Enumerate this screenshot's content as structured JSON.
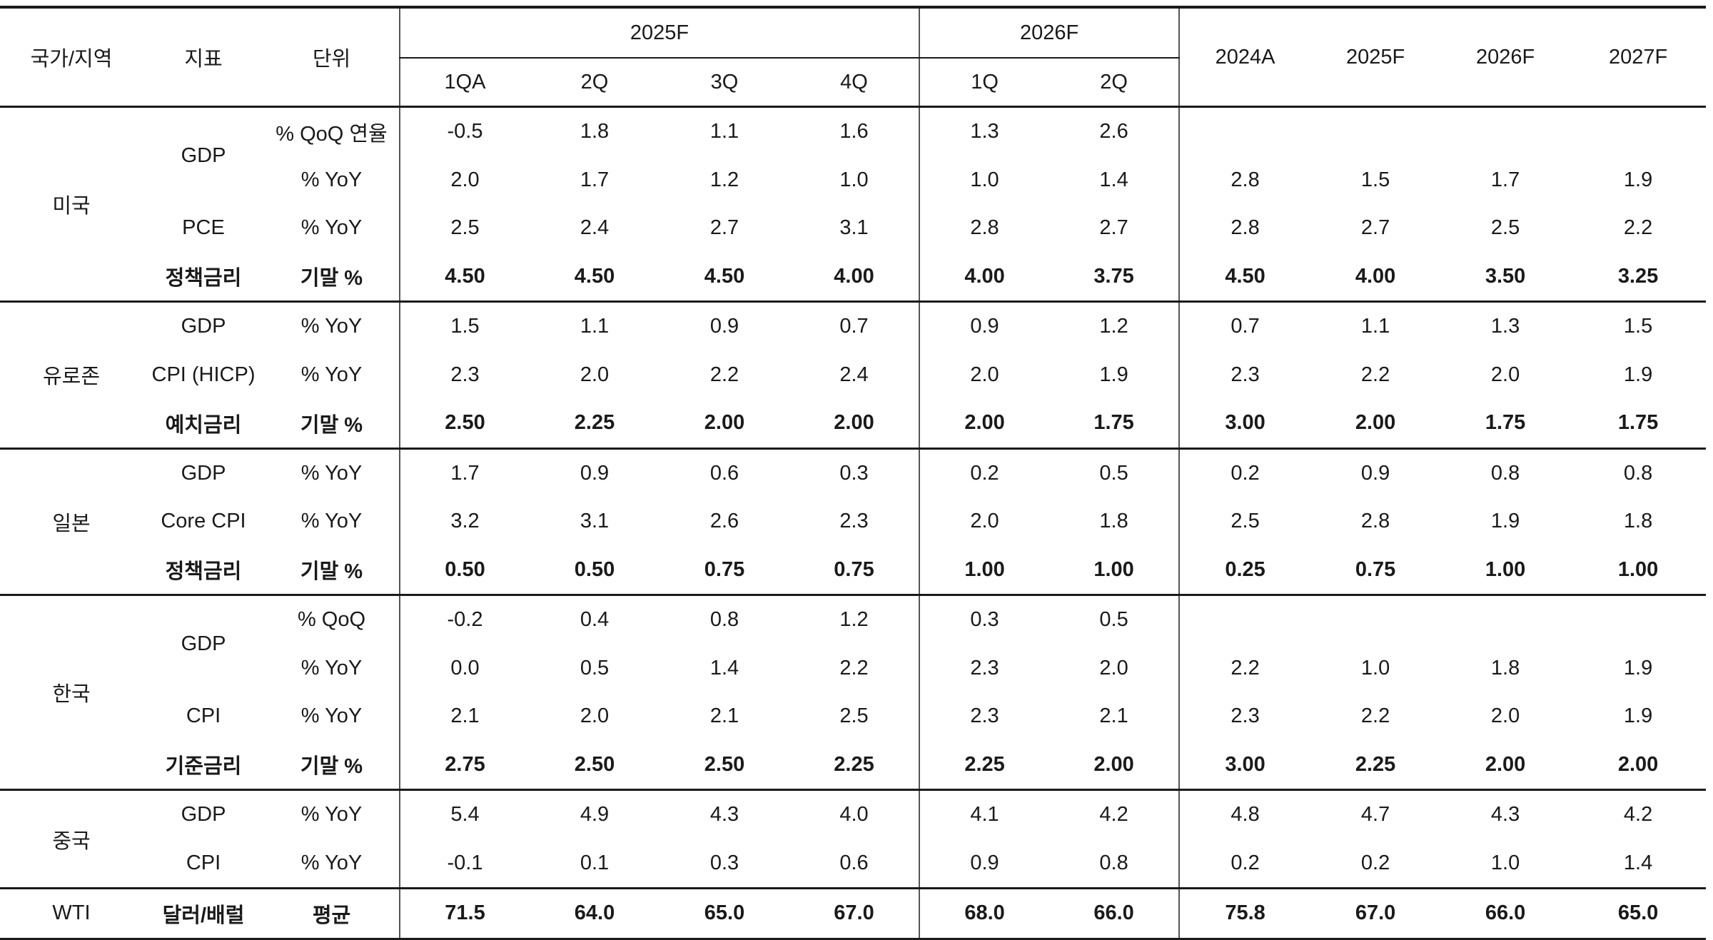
{
  "header": {
    "country": "국가/지역",
    "indicator": "지표",
    "unit": "단위",
    "group_2025": "2025F",
    "group_2026": "2026F",
    "quarters": [
      "1QA",
      "2Q",
      "3Q",
      "4Q",
      "1Q",
      "2Q"
    ],
    "annual": [
      "2024A",
      "2025F",
      "2026F",
      "2027F"
    ]
  },
  "sections": {
    "us": {
      "country": "미국",
      "rows": [
        {
          "indicator": "GDP",
          "unit": "% QoQ 연율",
          "q": [
            "-0.5",
            "1.8",
            "1.1",
            "1.6",
            "1.3",
            "2.6"
          ],
          "a": [
            "",
            "",
            "",
            ""
          ]
        },
        {
          "indicator": "",
          "unit": "% YoY",
          "q": [
            "2.0",
            "1.7",
            "1.2",
            "1.0",
            "1.0",
            "1.4"
          ],
          "a": [
            "2.8",
            "1.5",
            "1.7",
            "1.9"
          ]
        },
        {
          "indicator": "PCE",
          "unit": "% YoY",
          "q": [
            "2.5",
            "2.4",
            "2.7",
            "3.1",
            "2.8",
            "2.7"
          ],
          "a": [
            "2.8",
            "2.7",
            "2.5",
            "2.2"
          ]
        },
        {
          "indicator": "정책금리",
          "unit": "기말 %",
          "q": [
            "4.50",
            "4.50",
            "4.50",
            "4.00",
            "4.00",
            "3.75"
          ],
          "a": [
            "4.50",
            "4.00",
            "3.50",
            "3.25"
          ]
        }
      ]
    },
    "ez": {
      "country": "유로존",
      "rows": [
        {
          "indicator": "GDP",
          "unit": "% YoY",
          "q": [
            "1.5",
            "1.1",
            "0.9",
            "0.7",
            "0.9",
            "1.2"
          ],
          "a": [
            "0.7",
            "1.1",
            "1.3",
            "1.5"
          ]
        },
        {
          "indicator": "CPI (HICP)",
          "unit": "% YoY",
          "q": [
            "2.3",
            "2.0",
            "2.2",
            "2.4",
            "2.0",
            "1.9"
          ],
          "a": [
            "2.3",
            "2.2",
            "2.0",
            "1.9"
          ]
        },
        {
          "indicator": "예치금리",
          "unit": "기말 %",
          "q": [
            "2.50",
            "2.25",
            "2.00",
            "2.00",
            "2.00",
            "1.75"
          ],
          "a": [
            "3.00",
            "2.00",
            "1.75",
            "1.75"
          ]
        }
      ]
    },
    "jp": {
      "country": "일본",
      "rows": [
        {
          "indicator": "GDP",
          "unit": "% YoY",
          "q": [
            "1.7",
            "0.9",
            "0.6",
            "0.3",
            "0.2",
            "0.5"
          ],
          "a": [
            "0.2",
            "0.9",
            "0.8",
            "0.8"
          ]
        },
        {
          "indicator": "Core CPI",
          "unit": "% YoY",
          "q": [
            "3.2",
            "3.1",
            "2.6",
            "2.3",
            "2.0",
            "1.8"
          ],
          "a": [
            "2.5",
            "2.8",
            "1.9",
            "1.8"
          ]
        },
        {
          "indicator": "정책금리",
          "unit": "기말 %",
          "q": [
            "0.50",
            "0.50",
            "0.75",
            "0.75",
            "1.00",
            "1.00"
          ],
          "a": [
            "0.25",
            "0.75",
            "1.00",
            "1.00"
          ]
        }
      ]
    },
    "kr": {
      "country": "한국",
      "rows": [
        {
          "indicator": "GDP",
          "unit": "% QoQ",
          "q": [
            "-0.2",
            "0.4",
            "0.8",
            "1.2",
            "0.3",
            "0.5"
          ],
          "a": [
            "",
            "",
            "",
            ""
          ]
        },
        {
          "indicator": "",
          "unit": "% YoY",
          "q": [
            "0.0",
            "0.5",
            "1.4",
            "2.2",
            "2.3",
            "2.0"
          ],
          "a": [
            "2.2",
            "1.0",
            "1.8",
            "1.9"
          ]
        },
        {
          "indicator": "CPI",
          "unit": "% YoY",
          "q": [
            "2.1",
            "2.0",
            "2.1",
            "2.5",
            "2.3",
            "2.1"
          ],
          "a": [
            "2.3",
            "2.2",
            "2.0",
            "1.9"
          ]
        },
        {
          "indicator": "기준금리",
          "unit": "기말 %",
          "q": [
            "2.75",
            "2.50",
            "2.50",
            "2.25",
            "2.25",
            "2.00"
          ],
          "a": [
            "3.00",
            "2.25",
            "2.00",
            "2.00"
          ]
        }
      ]
    },
    "cn": {
      "country": "중국",
      "rows": [
        {
          "indicator": "GDP",
          "unit": "% YoY",
          "q": [
            "5.4",
            "4.9",
            "4.3",
            "4.0",
            "4.1",
            "4.2"
          ],
          "a": [
            "4.8",
            "4.7",
            "4.3",
            "4.2"
          ]
        },
        {
          "indicator": "CPI",
          "unit": "% YoY",
          "q": [
            "-0.1",
            "0.1",
            "0.3",
            "0.6",
            "0.9",
            "0.8"
          ],
          "a": [
            "0.2",
            "0.2",
            "1.0",
            "1.4"
          ]
        }
      ]
    },
    "wti": {
      "country": "WTI",
      "rows": [
        {
          "indicator": "달러/배럴",
          "unit": "평균",
          "q": [
            "71.5",
            "64.0",
            "65.0",
            "67.0",
            "68.0",
            "66.0"
          ],
          "a": [
            "75.8",
            "67.0",
            "66.0",
            "65.0"
          ]
        }
      ]
    }
  }
}
